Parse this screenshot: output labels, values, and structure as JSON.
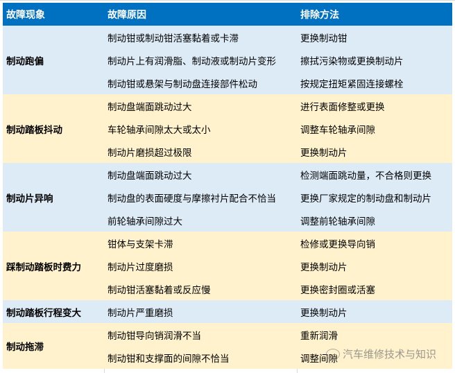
{
  "headers": [
    "故障现象",
    "故障原因",
    "排除方法"
  ],
  "groups": [
    {
      "symptom": "制动跑偏",
      "rows": [
        [
          "制动钳或制动钳活塞黏着或卡滞",
          "更换制动钳"
        ],
        [
          "制动片上有润滑脂、制动液或制动片变形",
          "擦拭污染物或更换制动片"
        ],
        [
          "制动钳或悬架与制动盘连接部件松动",
          "按规定扭矩紧固连接螺栓"
        ]
      ]
    },
    {
      "symptom": "制动踏板抖动",
      "rows": [
        [
          "制动盘端面跳动过大",
          "进行表面修整或更换"
        ],
        [
          "车轮轴承间隙太大或太小",
          "调整车轮轴承间隙"
        ],
        [
          "制动片磨损超过极限",
          "更换制动片"
        ]
      ]
    },
    {
      "symptom": "制动片异响",
      "rows": [
        [
          "制动盘端面跳动过大",
          "检测端面跳动量，不合格则更换"
        ],
        [
          "制动盘的表面硬度与摩擦衬片配合不恰当",
          "更换厂家规定的制动盘和制动片"
        ],
        [
          "前轮轴承间隙过大",
          "调整前轮轴承间隙"
        ]
      ]
    },
    {
      "symptom": "踩制动踏板时费力",
      "rows": [
        [
          "钳体与支架卡滞",
          "检修或更换导向销"
        ],
        [
          "制动片过度磨损",
          "更换制动片"
        ],
        [
          "制动钳活塞黏着或反应慢",
          "更换密封圈或活塞"
        ]
      ]
    },
    {
      "symptom": "制动踏板行程变大",
      "rows": [
        [
          "制动片严重磨损",
          "更换制动片"
        ]
      ]
    },
    {
      "symptom": "制动拖滞",
      "rows": [
        [
          "制动钳导向销润滑不当",
          "重新润滑"
        ],
        [
          "制动钳和支撑面的间隙不恰当",
          "调整间隙"
        ]
      ]
    }
  ],
  "watermark": "汽车维修技术与知识",
  "colors": {
    "header": "#0070c0",
    "blue_row": "#ddebf7",
    "yellow_row": "#fff2cc"
  }
}
